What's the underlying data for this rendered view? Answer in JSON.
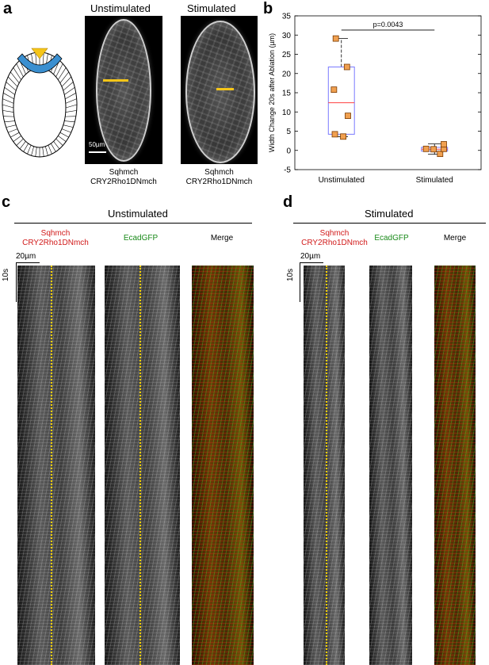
{
  "panels": {
    "a": {
      "letter": "a",
      "unstim_title": "Unstimulated",
      "stim_title": "Stimulated",
      "scale_label": "50µm",
      "caption_left_1": "Sqhmch",
      "caption_left_2": "CRY2Rho1DNmch",
      "caption_right_1": "Sqhmch",
      "caption_right_2": "CRY2Rho1DNmch"
    },
    "b": {
      "letter": "b",
      "pvalue": "p=0.0043"
    },
    "c": {
      "letter": "c",
      "title": "Unstimulated",
      "col1_line1": "Sqhmch",
      "col1_line2": "CRY2Rho1DNmch",
      "col2": "EcadGFP",
      "col3": "Merge",
      "scale_x": "20µm",
      "scale_y": "10s"
    },
    "d": {
      "letter": "d",
      "title": "Stimulated",
      "col1_line1": "Sqhmch",
      "col1_line2": "CRY2Rho1DNmch",
      "col2": "EcadGFP",
      "col3": "Merge",
      "scale_x": "20µm",
      "scale_y": "10s"
    }
  },
  "colors": {
    "red_label": "#d11a1a",
    "green_label": "#1a8a1a",
    "ablation_line": "#f5c518",
    "box_outline": "#7b7bff",
    "median": "#ff4040",
    "marker_fill": "#f0a050",
    "marker_edge": "#7a3a00"
  },
  "chart_data": {
    "type": "box",
    "ylabel": "Width Change 20s after Ablation (µm)",
    "categories": [
      "Unstimulated",
      "Stimulated"
    ],
    "ylim": [
      -5,
      35
    ],
    "yticks": [
      -5,
      0,
      5,
      10,
      15,
      20,
      25,
      30,
      35
    ],
    "boxes": [
      {
        "category": "Unstimulated",
        "q1": 4.2,
        "median": 12.4,
        "q3": 21.7,
        "whisker_low": 3.6,
        "whisker_high": 29.1
      },
      {
        "category": "Stimulated",
        "q1": -0.2,
        "median": 0.3,
        "q3": 0.8,
        "whisker_low": -1.0,
        "whisker_high": 1.7
      }
    ],
    "points": [
      {
        "category": "Unstimulated",
        "x_offset": -0.06,
        "y": 29.1
      },
      {
        "category": "Unstimulated",
        "x_offset": 0.06,
        "y": 21.7
      },
      {
        "category": "Unstimulated",
        "x_offset": -0.08,
        "y": 15.8
      },
      {
        "category": "Unstimulated",
        "x_offset": 0.07,
        "y": 9.0
      },
      {
        "category": "Unstimulated",
        "x_offset": -0.07,
        "y": 4.2
      },
      {
        "category": "Unstimulated",
        "x_offset": 0.02,
        "y": 3.6
      },
      {
        "category": "Stimulated",
        "x_offset": -0.09,
        "y": 0.4
      },
      {
        "category": "Stimulated",
        "x_offset": -0.01,
        "y": 0.3
      },
      {
        "category": "Stimulated",
        "x_offset": 0.06,
        "y": -0.9
      },
      {
        "category": "Stimulated",
        "x_offset": 0.1,
        "y": 0.4
      },
      {
        "category": "Stimulated",
        "x_offset": 0.1,
        "y": 1.6
      }
    ],
    "significance": {
      "from": "Unstimulated",
      "to": "Stimulated",
      "y": 31.3,
      "label": "p=0.0043"
    }
  }
}
